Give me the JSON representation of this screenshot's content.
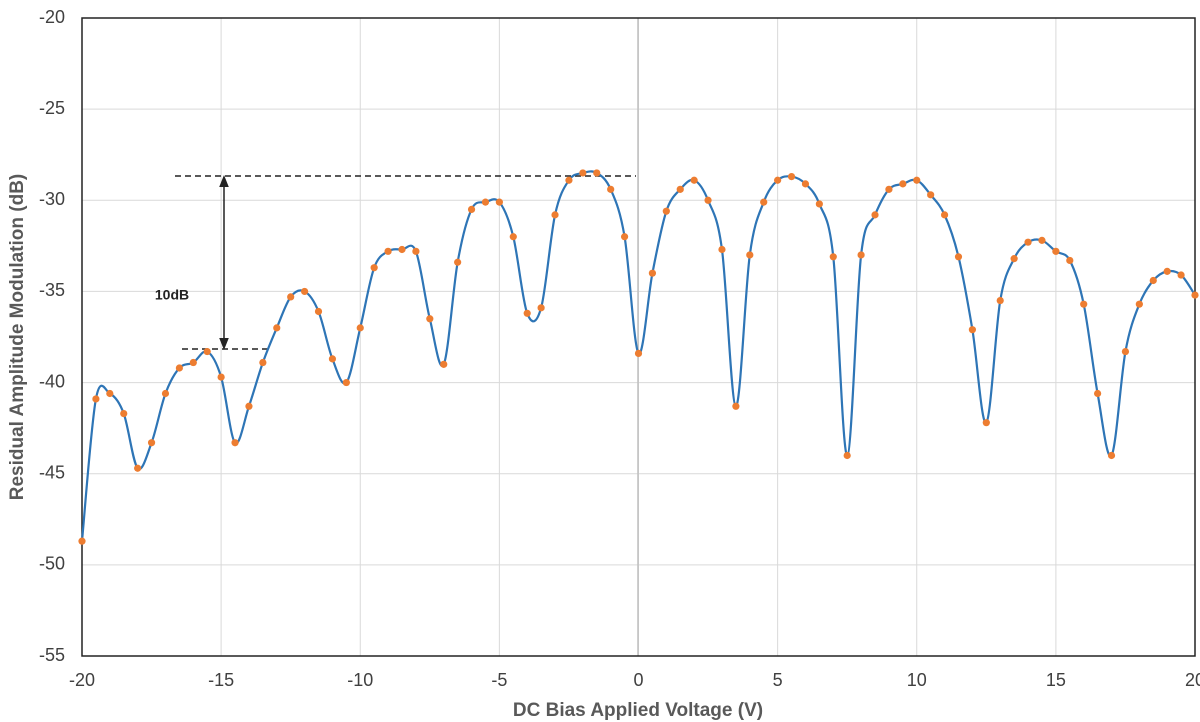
{
  "chart_data": {
    "type": "line",
    "x_label": "DC Bias Applied Voltage (V)",
    "y_label": "Residual Amplitude Modulation (dB)",
    "annotation": "10dB",
    "x": [
      -20,
      -19.5,
      -19,
      -18.5,
      -18,
      -17.5,
      -17,
      -16.5,
      -16,
      -15.5,
      -15,
      -14.5,
      -14,
      -13.5,
      -13,
      -12.5,
      -12,
      -11.5,
      -11,
      -10.5,
      -10,
      -9.5,
      -9,
      -8.5,
      -8,
      -7.5,
      -7,
      -6.5,
      -6,
      -5.5,
      -5,
      -4.5,
      -4,
      -3.5,
      -3,
      -2.5,
      -2,
      -1.5,
      -1,
      -0.5,
      0,
      0.5,
      1,
      1.5,
      2,
      2.5,
      3,
      3.5,
      4,
      4.5,
      5,
      5.5,
      6,
      6.5,
      7,
      7.5,
      8,
      8.5,
      9,
      9.5,
      10,
      10.5,
      11,
      11.5,
      12,
      12.5,
      13,
      13.5,
      14,
      14.5,
      15,
      15.5,
      16,
      16.5,
      17,
      17.5,
      18,
      18.5,
      19,
      19.5,
      20
    ],
    "values": [
      -48.7,
      -40.9,
      -40.6,
      -41.7,
      -44.7,
      -43.3,
      -40.6,
      -39.2,
      -38.9,
      -38.3,
      -39.7,
      -43.3,
      -41.3,
      -38.9,
      -37.0,
      -35.3,
      -35.0,
      -36.1,
      -38.7,
      -40.0,
      -37.0,
      -33.7,
      -32.8,
      -32.7,
      -32.8,
      -36.5,
      -39.0,
      -33.4,
      -30.5,
      -30.1,
      -30.1,
      -32.0,
      -36.2,
      -35.9,
      -30.8,
      -28.9,
      -28.5,
      -28.5,
      -29.4,
      -32.0,
      -38.4,
      -34.0,
      -30.6,
      -29.4,
      -28.9,
      -30.0,
      -32.7,
      -41.3,
      -33.0,
      -30.1,
      -28.9,
      -28.7,
      -29.1,
      -30.2,
      -33.1,
      -44.0,
      -33.0,
      -30.8,
      -29.4,
      -29.1,
      -28.9,
      -29.7,
      -30.8,
      -33.1,
      -37.1,
      -42.2,
      -35.5,
      -33.2,
      -32.3,
      -32.2,
      -32.8,
      -33.3,
      -35.7,
      -40.6,
      -44.0,
      -38.3,
      -35.7,
      -34.4,
      -33.9,
      -34.1,
      -35.2
    ],
    "line_color": "#2e75b6",
    "marker_color": "#ed7d31",
    "xlim": [
      -20,
      20
    ],
    "xticks": [
      -20,
      -15,
      -10,
      -5,
      0,
      5,
      10,
      15,
      20
    ],
    "ylim": [
      -55,
      -20
    ],
    "yticks": [
      -55,
      -50,
      -45,
      -40,
      -35,
      -30,
      -25,
      -20
    ],
    "grid": true
  }
}
